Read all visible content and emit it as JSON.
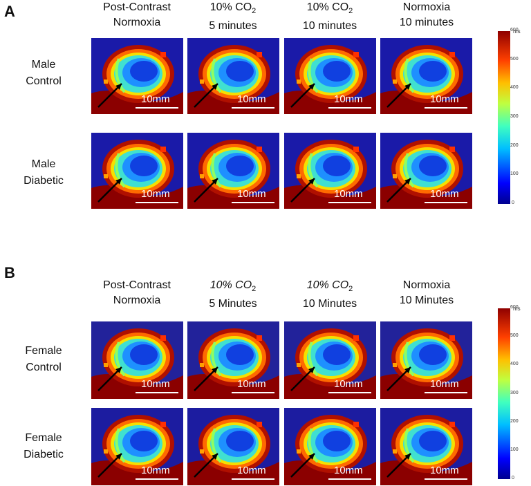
{
  "panels": [
    {
      "letter": "A",
      "headers": [
        {
          "line1": "Post-Contrast",
          "line2": "Normoxia"
        },
        {
          "line1": "10% CO",
          "sub": "2",
          "line2": "5 minutes"
        },
        {
          "line1": "10% CO",
          "sub": "2",
          "line2": "10 minutes"
        },
        {
          "line1": "Normoxia",
          "line2": "10 minutes"
        }
      ],
      "rows": [
        {
          "line1": "Male",
          "line2": "Control"
        },
        {
          "line1": "Male",
          "line2": "Diabetic"
        }
      ]
    },
    {
      "letter": "B",
      "headers": [
        {
          "line1": "Post-Contrast",
          "line2": "Normoxia"
        },
        {
          "line1": "10% CO",
          "sub": "2",
          "line2": "5 Minutes"
        },
        {
          "line1": "10% CO",
          "sub": "2",
          "line2": "10 Minutes"
        },
        {
          "line1": "Normoxia",
          "line2": "10 Minutes"
        }
      ],
      "rows": [
        {
          "line1": "Female",
          "line2": "Control"
        },
        {
          "line1": "Female",
          "line2": "Diabetic"
        }
      ]
    }
  ],
  "scale_bar_label": "10mm",
  "colorbar": {
    "unit": "ms",
    "ticks": [
      "600",
      "500",
      "400",
      "300",
      "200",
      "100",
      "0"
    ]
  }
}
